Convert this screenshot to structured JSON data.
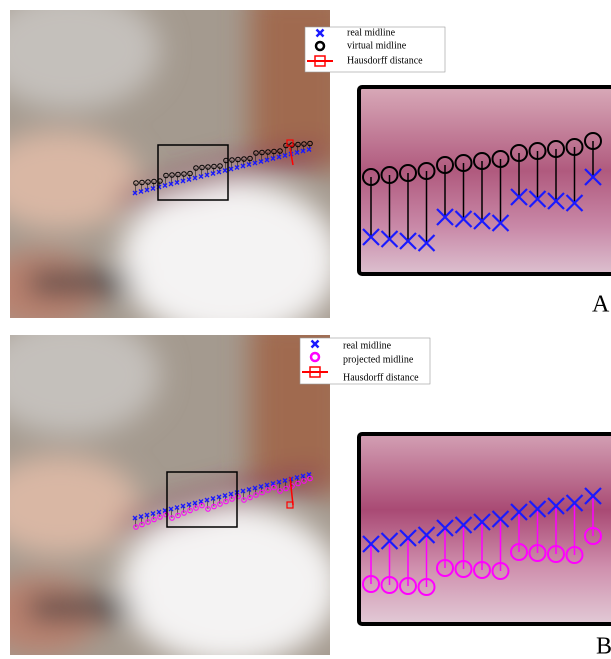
{
  "panels": [
    {
      "legend": [
        "real midline",
        "virtual midline",
        "Hausdorff distance"
      ],
      "label": "A"
    },
    {
      "legend": [
        "real midline",
        "projected midline",
        "Hausdorff distance"
      ],
      "label": "B"
    }
  ]
}
